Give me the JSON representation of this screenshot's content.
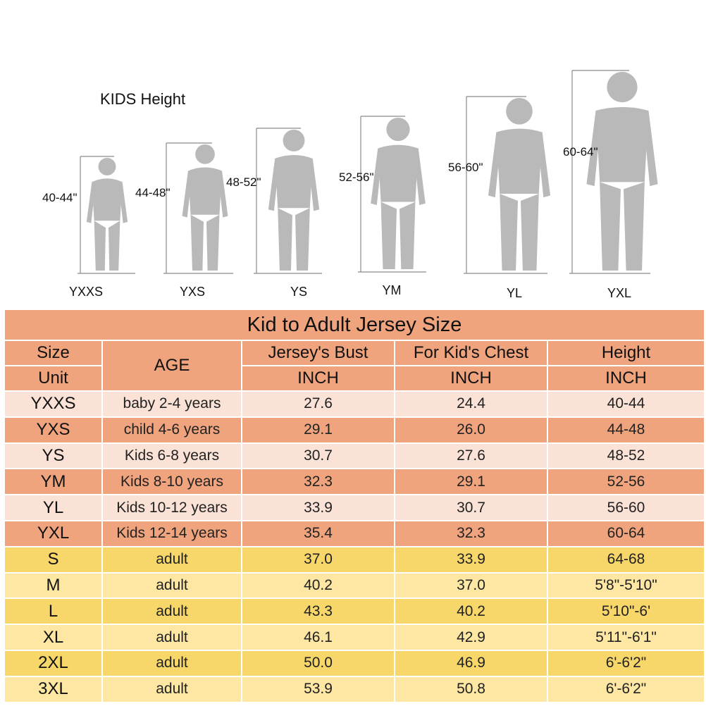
{
  "figures": {
    "title": "KIDS Height",
    "items": [
      {
        "size": "YXXS",
        "height": "40-44\""
      },
      {
        "size": "YXS",
        "height": "44-48\""
      },
      {
        "size": "YS",
        "height": "48-52\""
      },
      {
        "size": "YM",
        "height": "52-56\""
      },
      {
        "size": "YL",
        "height": "56-60\""
      },
      {
        "size": "YXL",
        "height": "60-64\""
      }
    ]
  },
  "table": {
    "title": "Kid to Adult Jersey Size",
    "headers": {
      "size": "Size",
      "unit": "Unit",
      "age": "AGE",
      "bust": "Jersey's Bust",
      "chest": "For Kid's Chest",
      "height": "Height",
      "bust_unit": "INCH",
      "chest_unit": "INCH",
      "height_unit": "INCH"
    },
    "rows": [
      {
        "size": "YXXS",
        "age": "baby 2-4 years",
        "bust": "27.6",
        "chest": "24.4",
        "height": "40-44"
      },
      {
        "size": "YXS",
        "age": "child 4-6 years",
        "bust": "29.1",
        "chest": "26.0",
        "height": "44-48"
      },
      {
        "size": "YS",
        "age": "Kids 6-8 years",
        "bust": "30.7",
        "chest": "27.6",
        "height": "48-52"
      },
      {
        "size": "YM",
        "age": "Kids 8-10 years",
        "bust": "32.3",
        "chest": "29.1",
        "height": "52-56"
      },
      {
        "size": "YL",
        "age": "Kids 10-12 years",
        "bust": "33.9",
        "chest": "30.7",
        "height": "56-60"
      },
      {
        "size": "YXL",
        "age": "Kids 12-14 years",
        "bust": "35.4",
        "chest": "32.3",
        "height": "60-64"
      },
      {
        "size": "S",
        "age": "adult",
        "bust": "37.0",
        "chest": "33.9",
        "height": "64-68"
      },
      {
        "size": "M",
        "age": "adult",
        "bust": "40.2",
        "chest": "37.0",
        "height": "5'8\"-5'10\""
      },
      {
        "size": "L",
        "age": "adult",
        "bust": "43.3",
        "chest": "40.2",
        "height": "5'10\"-6'"
      },
      {
        "size": "XL",
        "age": "adult",
        "bust": "46.1",
        "chest": "42.9",
        "height": "5'11\"-6'1\""
      },
      {
        "size": "2XL",
        "age": "adult",
        "bust": "50.0",
        "chest": "46.9",
        "height": "6'-6'2\""
      },
      {
        "size": "3XL",
        "age": "adult",
        "bust": "53.9",
        "chest": "50.8",
        "height": "6'-6'2\""
      }
    ]
  },
  "colors": {
    "kid_dark": "#f0a47e",
    "kid_light": "#fbe2d7",
    "adult_dark": "#f8d76a",
    "adult_light": "#fde7a3",
    "silhouette": "#b9b9b9",
    "guide_line": "#8a8a8a"
  }
}
